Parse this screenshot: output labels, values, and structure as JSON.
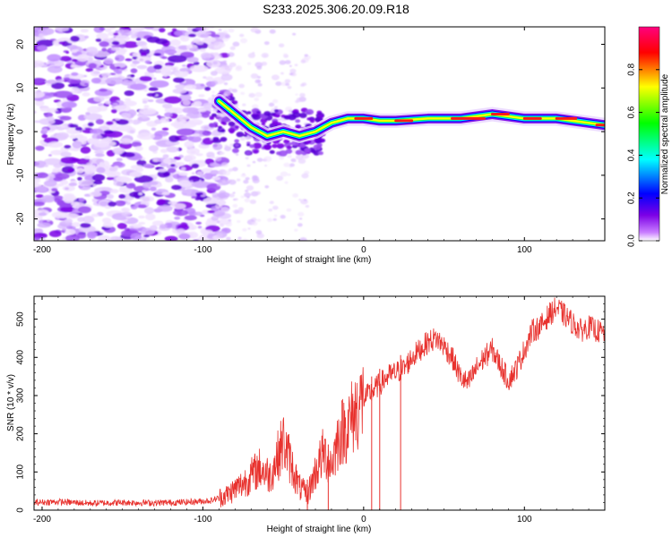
{
  "page": {
    "title": "S233.2025.306.20.09.R18"
  },
  "colors": {
    "frame": "#000000",
    "snr_line": "#e8322e",
    "background": "#ffffff"
  },
  "chart_data": [
    {
      "type": "heatmap",
      "title": "S233.2025.306.20.09.R18",
      "xlabel": "Height of straight line (km)",
      "ylabel": "Frequency (Hz)",
      "xlim": [
        -205,
        150
      ],
      "ylim": [
        -25,
        24
      ],
      "xticks": [
        -200,
        -100,
        0,
        100
      ],
      "yticks": [
        -20,
        -10,
        0,
        10,
        20
      ],
      "colorbar": {
        "label": "Normalized spectral amplitude",
        "range": [
          0,
          1
        ],
        "ticks": [
          "0.0",
          "0.2",
          "0.4",
          "0.6",
          "0.8"
        ],
        "colormap": [
          "#ffffff",
          "#7b00e6",
          "#0000ff",
          "#00ffff",
          "#00ff00",
          "#ffff00",
          "#ff0000",
          "#ff007f"
        ]
      },
      "ridge": [
        {
          "x": -90,
          "y": 7
        },
        {
          "x": -80,
          "y": 4
        },
        {
          "x": -70,
          "y": 1
        },
        {
          "x": -60,
          "y": -1
        },
        {
          "x": -50,
          "y": 0
        },
        {
          "x": -40,
          "y": -1
        },
        {
          "x": -30,
          "y": 0
        },
        {
          "x": -20,
          "y": 2
        },
        {
          "x": -10,
          "y": 3
        },
        {
          "x": 0,
          "y": 3
        },
        {
          "x": 10,
          "y": 2.5
        },
        {
          "x": 20,
          "y": 2.5
        },
        {
          "x": 40,
          "y": 3
        },
        {
          "x": 60,
          "y": 3
        },
        {
          "x": 80,
          "y": 4
        },
        {
          "x": 100,
          "y": 3
        },
        {
          "x": 120,
          "y": 3
        },
        {
          "x": 140,
          "y": 2
        },
        {
          "x": 150,
          "y": 1.5
        }
      ]
    },
    {
      "type": "line",
      "xlabel": "Height of straight line (km)",
      "ylabel": "SNR (10 * v/v)",
      "xlim": [
        -205,
        150
      ],
      "ylim": [
        0,
        560
      ],
      "xticks": [
        -200,
        -100,
        0,
        100
      ],
      "yticks": [
        0,
        100,
        200,
        300,
        400,
        500
      ],
      "series": [
        {
          "name": "SNR",
          "x": [
            -205,
            -190,
            -170,
            -150,
            -130,
            -110,
            -95,
            -85,
            -75,
            -65,
            -58,
            -50,
            -45,
            -40,
            -35,
            -30,
            -25,
            -20,
            -15,
            -10,
            -5,
            0,
            5,
            10,
            15,
            20,
            25,
            30,
            35,
            40,
            45,
            50,
            55,
            60,
            65,
            70,
            75,
            80,
            85,
            90,
            95,
            100,
            105,
            110,
            115,
            120,
            125,
            130,
            135,
            140,
            145,
            150
          ],
          "values": [
            20,
            22,
            18,
            20,
            19,
            21,
            25,
            40,
            70,
            110,
            90,
            180,
            120,
            60,
            40,
            100,
            150,
            120,
            200,
            220,
            260,
            290,
            310,
            330,
            350,
            360,
            370,
            400,
            420,
            440,
            450,
            430,
            400,
            350,
            330,
            370,
            400,
            420,
            380,
            340,
            370,
            420,
            470,
            480,
            510,
            530,
            510,
            490,
            470,
            480,
            470,
            460
          ]
        }
      ],
      "dropouts": [
        -35,
        -22,
        5,
        10,
        23
      ]
    }
  ]
}
